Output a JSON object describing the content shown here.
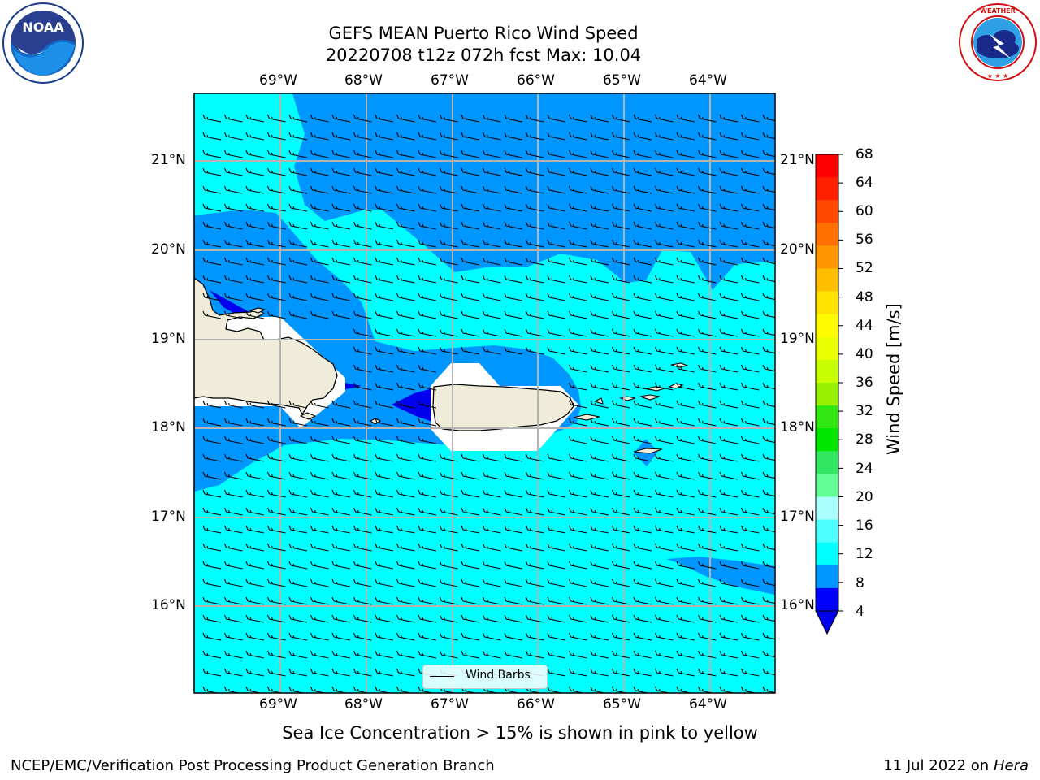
{
  "title": {
    "line1": "GEFS MEAN Puerto Rico Wind Speed",
    "line2": "20220708 t12z 072h fcst   Max: 10.04"
  },
  "axes": {
    "lon_labels": [
      "69°W",
      "68°W",
      "67°W",
      "66°W",
      "65°W",
      "64°W"
    ],
    "lat_labels": [
      "21°N",
      "20°N",
      "19°N",
      "18°N",
      "17°N",
      "16°N"
    ]
  },
  "colorbar": {
    "title": "Wind Speed [m/s]",
    "ticks": [
      "68",
      "64",
      "60",
      "56",
      "52",
      "48",
      "44",
      "40",
      "36",
      "32",
      "28",
      "24",
      "20",
      "16",
      "12",
      "8",
      "4"
    ],
    "colors": [
      "#ff0000",
      "#ff2000",
      "#ff4800",
      "#ff7000",
      "#ff9600",
      "#ffbe00",
      "#ffe400",
      "#fffc00",
      "#eaff00",
      "#c8ff00",
      "#96f000",
      "#32e614",
      "#00e600",
      "#32e664",
      "#64ff96",
      "#aaffff",
      "#4dffff",
      "#00ffff",
      "#0096ff",
      "#0000ff"
    ],
    "extend_arrow_color": "#0000ee"
  },
  "legend": {
    "label": "Wind Barbs"
  },
  "caption": "Sea Ice Concentration > 15% is shown in pink to yellow",
  "footer": {
    "left": "NCEP/EMC/Verification Post Processing Product Generation Branch",
    "date": "11 Jul 2022 on ",
    "machine": "Hera"
  },
  "logos": {
    "left": "noaa-logo",
    "right": "nws-logo",
    "left_text": "NOAA",
    "left_ring": "NATIONAL OCEANIC AND ATMOSPHERIC ADMINISTRATION · U.S. DEPARTMENT OF COMMERCE",
    "right_ring": "NATIONAL WEATHER SERVICE"
  },
  "colors": {
    "speed_4_8": "#0096ff",
    "speed_8_12": "#00ffff",
    "speed_below_4": "#0000ee",
    "land": "#efedd9",
    "grid": "#b4b4b4"
  }
}
